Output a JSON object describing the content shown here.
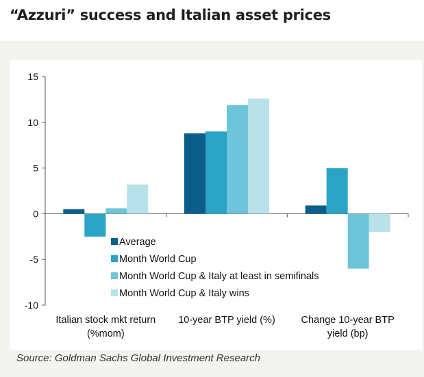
{
  "header": {
    "title": "“Azzuri” success and Italian asset prices"
  },
  "source": "Source: Goldman Sachs Global Investment Research",
  "chart_data": {
    "type": "bar",
    "categories": [
      [
        "Italian stock mkt return",
        "(%mom)"
      ],
      [
        "10-year  BTP yield (%)"
      ],
      [
        "Change 10-year  BTP",
        "yield (bp)"
      ]
    ],
    "series": [
      {
        "name": "Average",
        "color": "#0b5e8a",
        "values": [
          0.5,
          8.8,
          0.9
        ]
      },
      {
        "name": "Month World Cup",
        "color": "#2aa3c4",
        "values": [
          -2.5,
          9.0,
          5.0
        ]
      },
      {
        "name": "Month World Cup & Italy at least in semifinals",
        "color": "#6ec4d8",
        "values": [
          0.6,
          11.9,
          -6.0
        ]
      },
      {
        "name": "Month World Cup & Italy wins",
        "color": "#b8e1ea",
        "values": [
          3.2,
          12.6,
          -2.0
        ]
      }
    ],
    "ylim": [
      -10,
      15
    ],
    "yticks": [
      "15",
      "10",
      "5",
      "0",
      "-5",
      "-10"
    ],
    "legend_position": "center",
    "grid": false
  }
}
